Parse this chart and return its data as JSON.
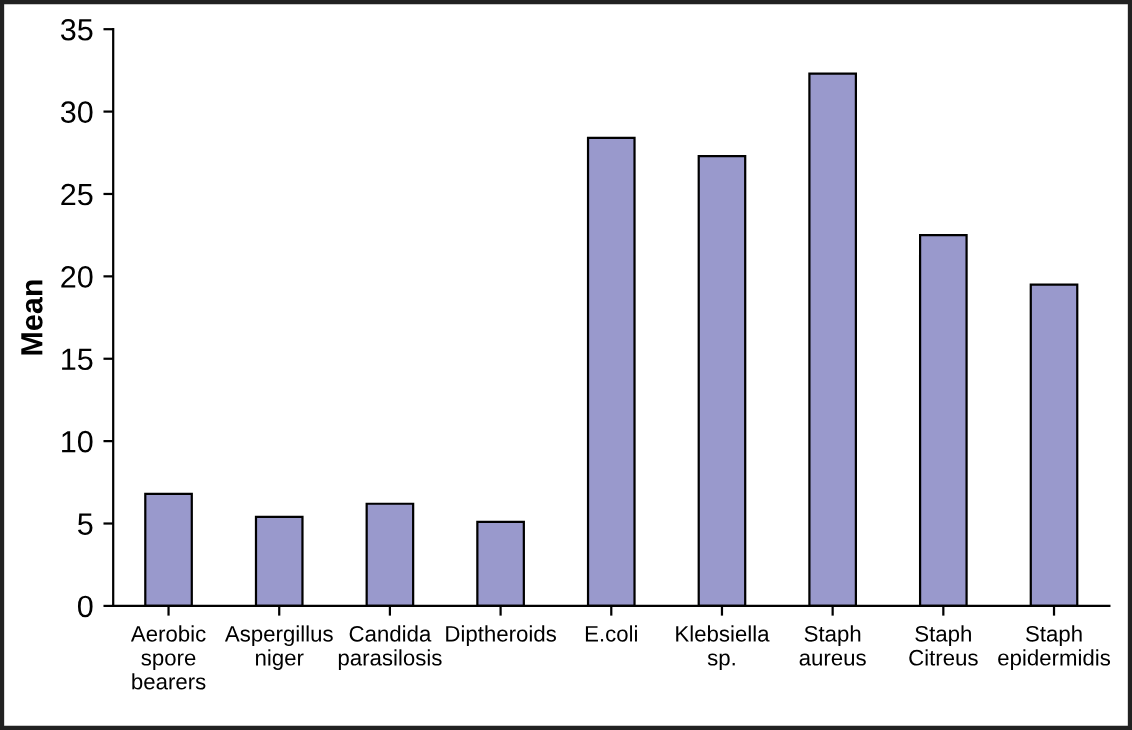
{
  "chart_data": {
    "type": "bar",
    "ylabel": "Mean",
    "categories": [
      "Aerobic\nspore\nbearers",
      "Aspergillus\nniger",
      "Candida\nparasilosis",
      "Diptheroids",
      "E.coli",
      "Klebsiella\nsp.",
      "Staph\naureus",
      "Staph\nCitreus",
      "Staph\nepidermidis"
    ],
    "values": [
      6.8,
      5.4,
      6.2,
      5.1,
      28.4,
      27.3,
      32.3,
      22.5,
      19.5
    ],
    "color": "#9999cc",
    "ylim": [
      0,
      35
    ],
    "yticks": [
      0,
      5,
      10,
      15,
      20,
      25,
      30,
      35
    ],
    "grid": false
  }
}
